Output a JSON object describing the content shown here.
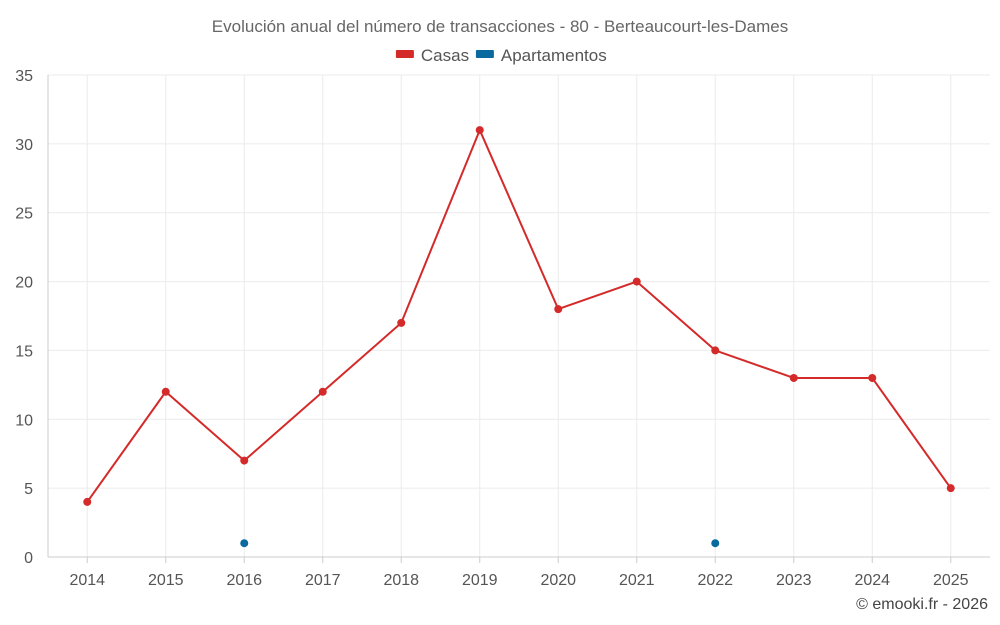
{
  "chart_data": {
    "type": "line",
    "title": "Evolución anual del número de transacciones - 80 - Berteaucourt-les-Dames",
    "categories": [
      "2014",
      "2015",
      "2016",
      "2017",
      "2018",
      "2019",
      "2020",
      "2021",
      "2022",
      "2023",
      "2024",
      "2025"
    ],
    "series": [
      {
        "name": "Casas",
        "color": "#d42a2a",
        "values": [
          4,
          12,
          7,
          12,
          17,
          31,
          18,
          20,
          15,
          13,
          13,
          5
        ]
      },
      {
        "name": "Apartamentos",
        "color": "#0a6aa0",
        "values": [
          null,
          null,
          1,
          null,
          null,
          null,
          null,
          null,
          1,
          null,
          null,
          null
        ]
      }
    ],
    "ylim": [
      0,
      35
    ],
    "yticks": [
      0,
      5,
      10,
      15,
      20,
      25,
      30,
      35
    ],
    "xlabel": "",
    "ylabel": "",
    "legend": "top-center",
    "grid": true
  },
  "footer": {
    "credit": "© emooki.fr - 2026"
  }
}
